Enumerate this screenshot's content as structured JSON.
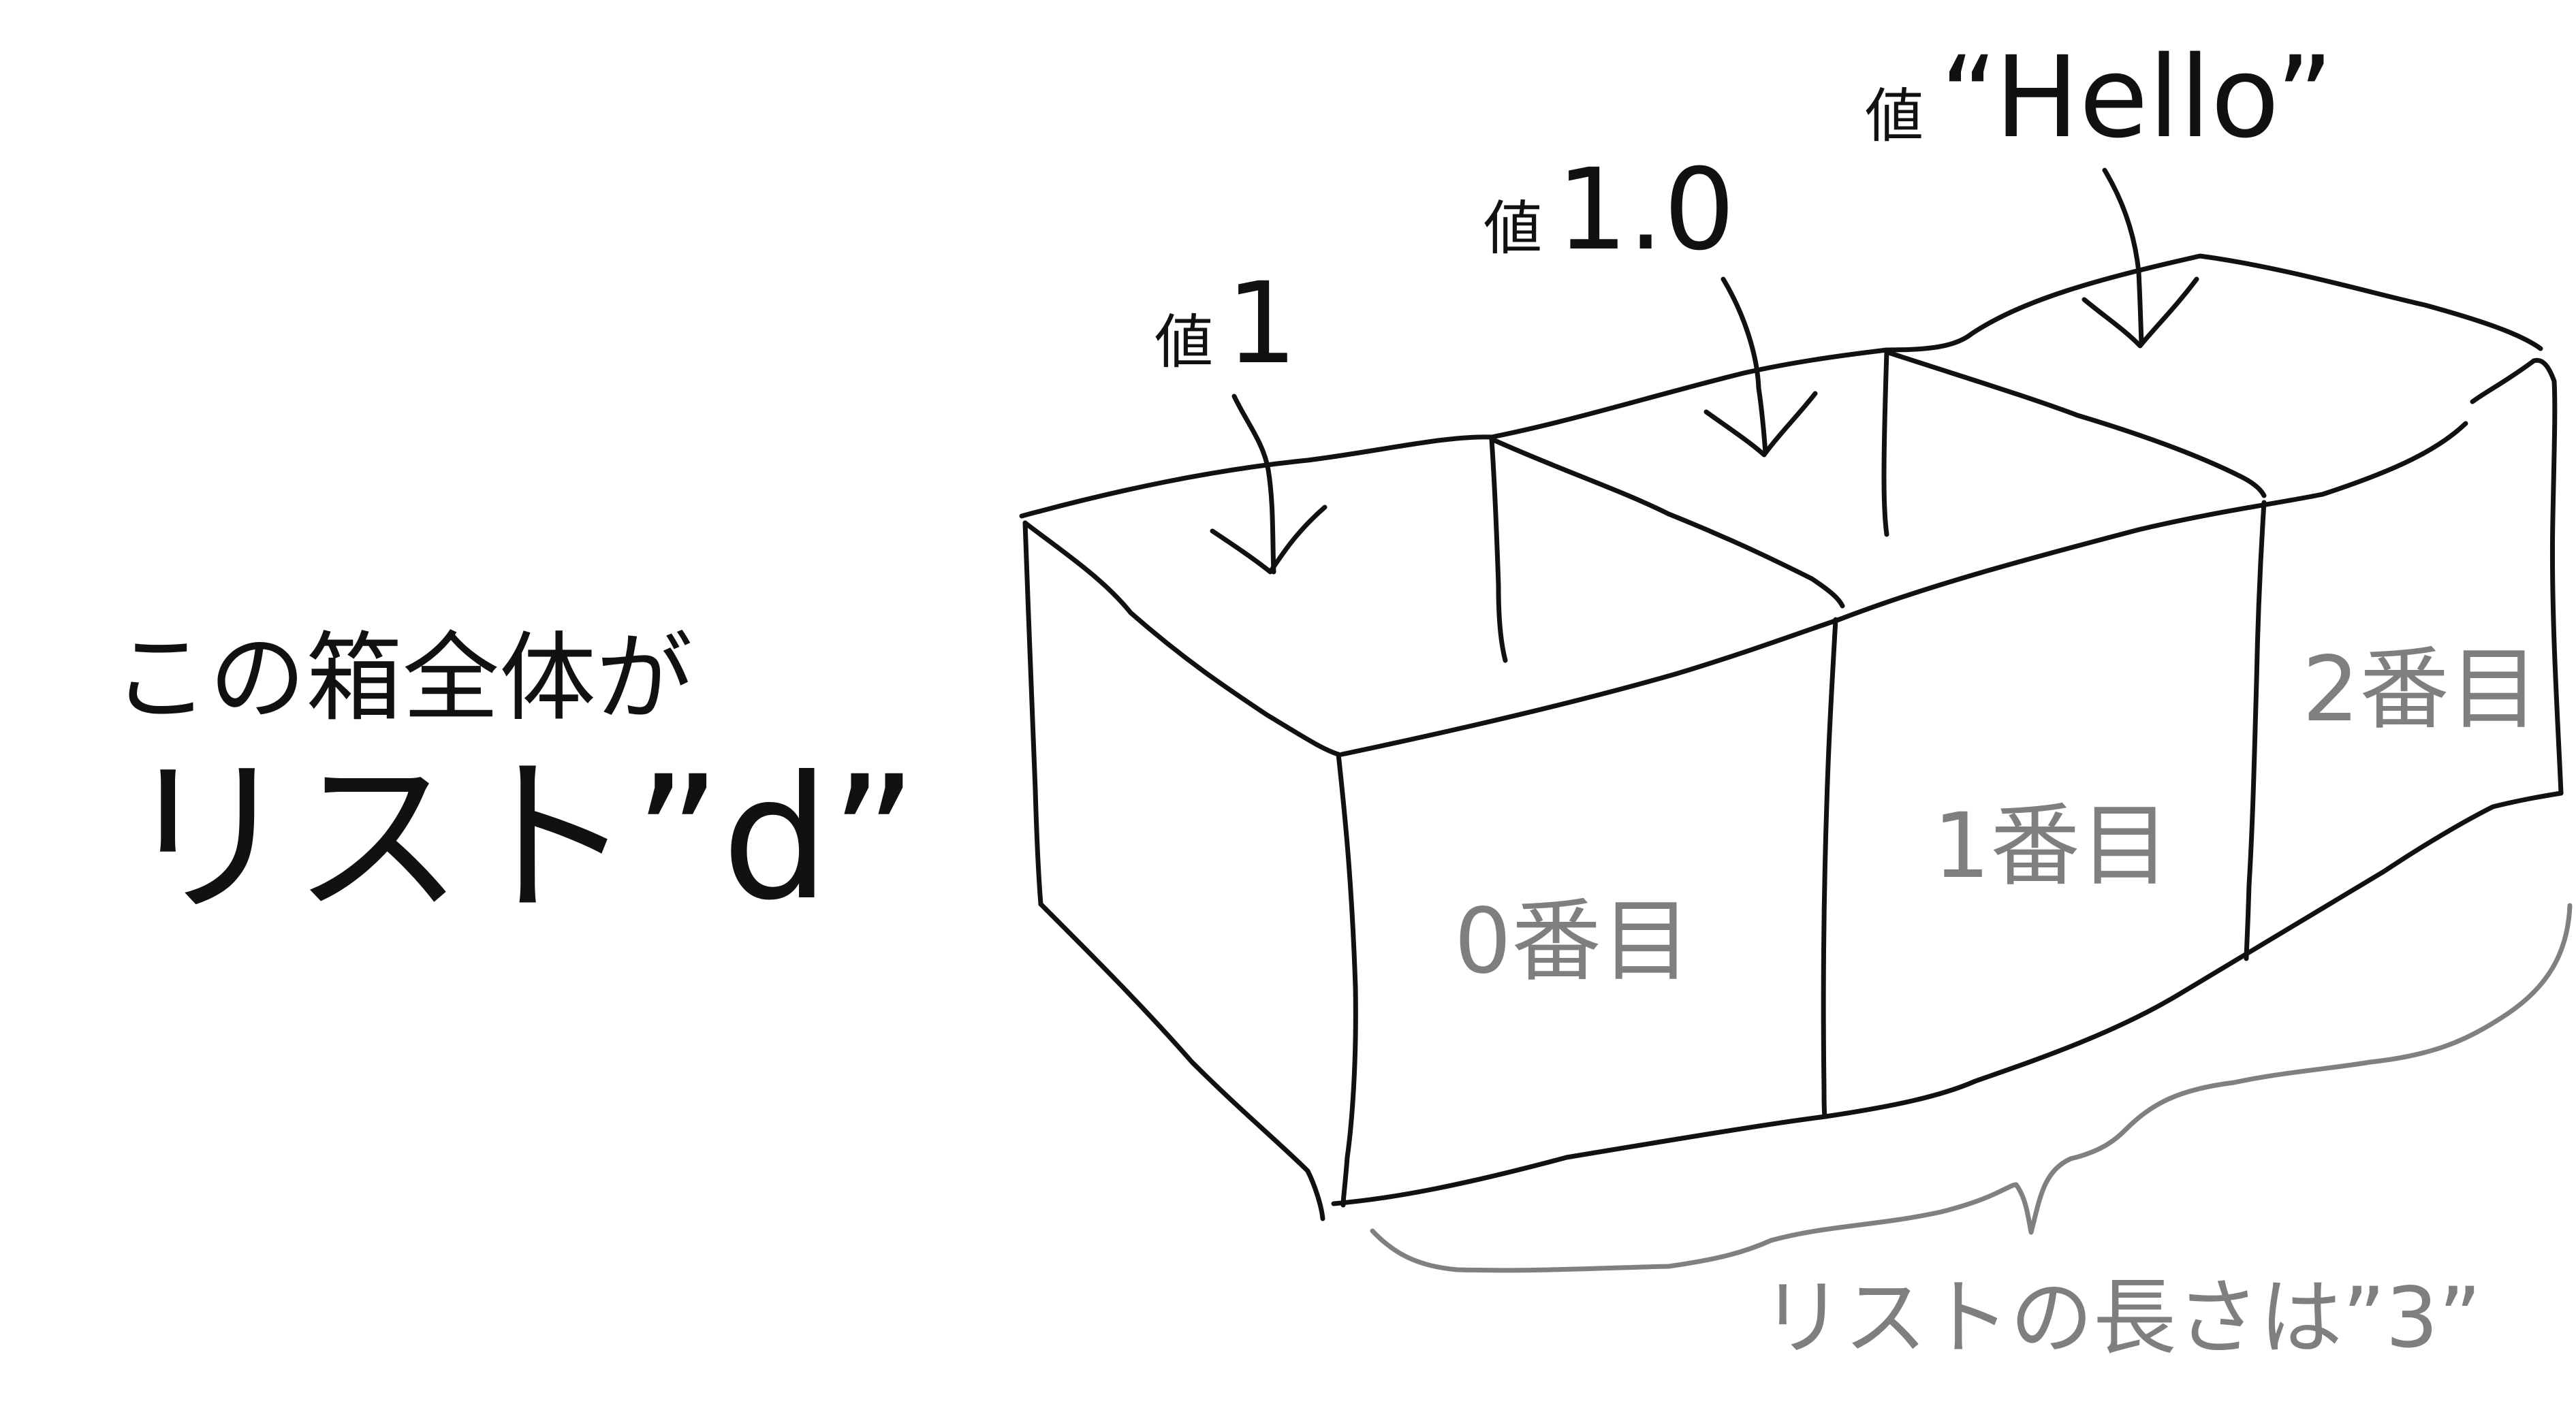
{
  "colors": {
    "ink": "#111111",
    "gray_text": "#7f7f7f",
    "background": "#ffffff"
  },
  "left_caption": {
    "line1": "この箱全体が",
    "line2": "リスト”d”"
  },
  "value_labels": [
    {
      "prefix": "値",
      "value": "1"
    },
    {
      "prefix": "値",
      "value": "1.0"
    },
    {
      "prefix": "値",
      "value": "“Hello”"
    }
  ],
  "index_labels": [
    "0番目",
    "1番目",
    "2番目"
  ],
  "length_label": "リストの長さは”3”"
}
